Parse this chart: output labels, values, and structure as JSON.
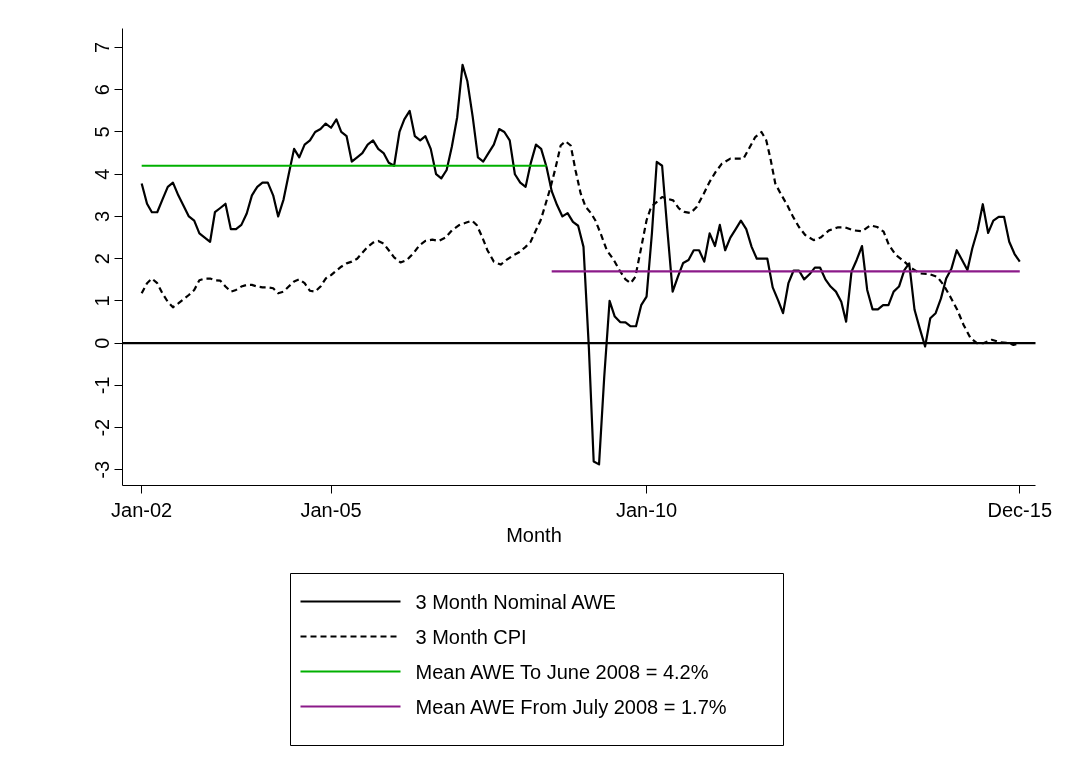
{
  "chart_data": {
    "type": "line",
    "xlabel": "Month",
    "x": [
      "2002-01",
      "2002-02",
      "2002-03",
      "2002-04",
      "2002-05",
      "2002-06",
      "2002-07",
      "2002-08",
      "2002-09",
      "2002-10",
      "2002-11",
      "2002-12",
      "2003-01",
      "2003-02",
      "2003-03",
      "2003-04",
      "2003-05",
      "2003-06",
      "2003-07",
      "2003-08",
      "2003-09",
      "2003-10",
      "2003-11",
      "2003-12",
      "2004-01",
      "2004-02",
      "2004-03",
      "2004-04",
      "2004-05",
      "2004-06",
      "2004-07",
      "2004-08",
      "2004-09",
      "2004-10",
      "2004-11",
      "2004-12",
      "2005-01",
      "2005-02",
      "2005-03",
      "2005-04",
      "2005-05",
      "2005-06",
      "2005-07",
      "2005-08",
      "2005-09",
      "2005-10",
      "2005-11",
      "2005-12",
      "2006-01",
      "2006-02",
      "2006-03",
      "2006-04",
      "2006-05",
      "2006-06",
      "2006-07",
      "2006-08",
      "2006-09",
      "2006-10",
      "2006-11",
      "2006-12",
      "2007-01",
      "2007-02",
      "2007-03",
      "2007-04",
      "2007-05",
      "2007-06",
      "2007-07",
      "2007-08",
      "2007-09",
      "2007-10",
      "2007-11",
      "2007-12",
      "2008-01",
      "2008-02",
      "2008-03",
      "2008-04",
      "2008-05",
      "2008-06",
      "2008-07",
      "2008-08",
      "2008-09",
      "2008-10",
      "2008-11",
      "2008-12",
      "2009-01",
      "2009-02",
      "2009-03",
      "2009-04",
      "2009-05",
      "2009-06",
      "2009-07",
      "2009-08",
      "2009-09",
      "2009-10",
      "2009-11",
      "2009-12",
      "2010-01",
      "2010-02",
      "2010-03",
      "2010-04",
      "2010-05",
      "2010-06",
      "2010-07",
      "2010-08",
      "2010-09",
      "2010-10",
      "2010-11",
      "2010-12",
      "2011-01",
      "2011-02",
      "2011-03",
      "2011-04",
      "2011-05",
      "2011-06",
      "2011-07",
      "2011-08",
      "2011-09",
      "2011-10",
      "2011-11",
      "2011-12",
      "2012-01",
      "2012-02",
      "2012-03",
      "2012-04",
      "2012-05",
      "2012-06",
      "2012-07",
      "2012-08",
      "2012-09",
      "2012-10",
      "2012-11",
      "2012-12",
      "2013-01",
      "2013-02",
      "2013-03",
      "2013-04",
      "2013-05",
      "2013-06",
      "2013-07",
      "2013-08",
      "2013-09",
      "2013-10",
      "2013-11",
      "2013-12",
      "2014-01",
      "2014-02",
      "2014-03",
      "2014-04",
      "2014-05",
      "2014-06",
      "2014-07",
      "2014-08",
      "2014-09",
      "2014-10",
      "2014-11",
      "2014-12",
      "2015-01",
      "2015-02",
      "2015-03",
      "2015-04",
      "2015-05",
      "2015-06",
      "2015-07",
      "2015-08",
      "2015-09",
      "2015-10",
      "2015-11",
      "2015-12"
    ],
    "series": [
      {
        "name": "3 Month Nominal AWE",
        "color": "#000000",
        "line_style": "solid",
        "values": [
          3.78,
          3.3,
          3.1,
          3.1,
          3.4,
          3.7,
          3.8,
          3.5,
          3.25,
          3.0,
          2.9,
          2.6,
          2.5,
          2.4,
          3.1,
          3.2,
          3.3,
          2.7,
          2.7,
          2.8,
          3.07,
          3.5,
          3.7,
          3.8,
          3.8,
          3.5,
          3.0,
          3.4,
          4.0,
          4.6,
          4.4,
          4.7,
          4.8,
          5.0,
          5.07,
          5.2,
          5.1,
          5.3,
          5.0,
          4.9,
          4.3,
          4.4,
          4.5,
          4.7,
          4.8,
          4.6,
          4.5,
          4.27,
          4.2,
          5.0,
          5.3,
          5.5,
          4.9,
          4.8,
          4.9,
          4.6,
          4.0,
          3.9,
          4.1,
          4.65,
          5.35,
          6.59,
          6.2,
          5.35,
          4.4,
          4.3,
          4.5,
          4.7,
          5.07,
          5.0,
          4.8,
          4.0,
          3.8,
          3.7,
          4.25,
          4.7,
          4.6,
          4.17,
          3.6,
          3.27,
          3.0,
          3.08,
          2.87,
          2.78,
          2.28,
          -0.1,
          -2.8,
          -2.87,
          -0.8,
          1.0,
          0.63,
          0.5,
          0.49,
          0.4,
          0.4,
          0.9,
          1.1,
          2.6,
          4.29,
          4.2,
          2.7,
          1.22,
          1.57,
          1.9,
          1.97,
          2.2,
          2.2,
          1.93,
          2.6,
          2.3,
          2.8,
          2.2,
          2.5,
          2.7,
          2.9,
          2.7,
          2.28,
          2.0,
          2.0,
          2.0,
          1.32,
          1.02,
          0.71,
          1.42,
          1.72,
          1.72,
          1.51,
          1.63,
          1.79,
          1.79,
          1.51,
          1.34,
          1.22,
          0.98,
          0.51,
          1.69,
          1.97,
          2.3,
          1.26,
          0.8,
          0.8,
          0.9,
          0.9,
          1.22,
          1.34,
          1.73,
          1.89,
          0.79,
          0.35,
          -0.08,
          0.59,
          0.71,
          1.06,
          1.53,
          1.77,
          2.2,
          1.97,
          1.73,
          2.24,
          2.68,
          3.29,
          2.61,
          2.9,
          2.99,
          2.99,
          2.4,
          2.11,
          1.93
        ]
      },
      {
        "name": "3 Month CPI",
        "color": "#000000",
        "line_style": "dashed",
        "x": [
          "2002-01-01",
          "2002-02-01",
          "2002-03-01",
          "2002-04-01",
          "2002-05-01",
          "2002-06-01",
          "2002-07-01",
          "2002-08-01",
          "2002-09-01",
          "2002-10-01",
          "2002-11-01",
          "2002-12-01",
          "2003-01-01",
          "2003-02-01",
          "2003-03-01",
          "2003-04-01",
          "2003-05-01",
          "2003-06-01",
          "2003-07-01",
          "2003-08-01",
          "2003-09-01",
          "2003-10-01",
          "2003-11-01",
          "2003-12-01",
          "2004-01-01",
          "2004-02-01",
          "2004-03-01",
          "2004-04-01",
          "2004-05-01",
          "2004-06-01",
          "2004-07-01",
          "2004-08-01",
          "2004-09-01",
          "2004-10-01",
          "2004-11-01",
          "2004-12-01",
          "2005-01-01",
          "2005-02-01",
          "2005-03-01",
          "2005-04-01",
          "2005-05-01",
          "2005-06-01",
          "2005-07-01",
          "2005-08-01",
          "2005-09-01",
          "2005-10-01",
          "2005-11-01",
          "2005-12-01",
          "2006-01-01",
          "2006-02-07",
          "2006-03-16",
          "2006-04-25",
          "2006-05-28",
          "2006-07-01",
          "2006-08-10",
          "2006-09-16",
          "2006-10-25",
          "2006-12-01",
          "2007-01-10",
          "2007-02-19",
          "2007-03-28",
          "2007-04-25",
          "2007-05-25",
          "2007-06-25",
          "2007-08-01",
          "2007-09-10",
          "2007-10-13",
          "2007-11-22",
          "2007-12-28",
          "2008-02-01",
          "2008-03-01",
          "2008-03-28",
          "2008-04-28",
          "2008-05-22",
          "2008-06-25",
          "2008-07-22",
          "2008-08-22",
          "2008-09-19",
          "2008-10-19",
          "2008-11-16",
          "2008-12-16",
          "2009-01-13",
          "2009-02-13",
          "2009-03-10",
          "2009-04-10",
          "2009-05-16",
          "2009-06-25",
          "2009-07-28",
          "2009-09-01",
          "2009-10-01",
          "2009-10-28",
          "2009-11-28",
          "2010-01-01",
          "2010-01-28",
          "2010-02-28",
          "2010-04-01",
          "2010-05-01",
          "2010-06-04",
          "2010-07-07",
          "2010-08-07",
          "2010-09-13",
          "2010-10-19",
          "2010-11-28",
          "2011-01-01",
          "2011-02-04",
          "2011-03-13",
          "2011-05-01",
          "2011-06-07",
          "2011-07-16",
          "2011-08-16",
          "2011-09-22",
          "2011-10-28",
          "2011-11-25",
          "2011-12-19",
          "2012-01-16",
          "2012-02-16",
          "2012-03-25",
          "2012-04-28",
          "2012-06-01",
          "2012-07-07",
          "2012-08-25",
          "2012-10-04",
          "2012-11-22",
          "2013-01-10",
          "2013-02-25",
          "2013-04-13",
          "2013-06-01",
          "2013-07-19",
          "2013-08-28",
          "2013-10-04",
          "2013-11-04",
          "2013-12-13",
          "2014-02-01",
          "2014-03-16",
          "2014-05-04",
          "2014-06-22",
          "2014-08-10",
          "2014-09-16",
          "2014-10-25",
          "2014-12-04",
          "2015-01-10",
          "2015-02-19",
          "2015-03-28",
          "2015-05-04",
          "2015-06-22",
          "2015-08-10",
          "2015-09-28",
          "2015-10-25",
          "2015-12-01"
        ],
        "values": [
          1.18,
          1.42,
          1.53,
          1.42,
          1.18,
          0.98,
          0.85,
          0.94,
          1.04,
          1.14,
          1.26,
          1.49,
          1.53,
          1.53,
          1.49,
          1.48,
          1.34,
          1.22,
          1.26,
          1.34,
          1.38,
          1.38,
          1.34,
          1.32,
          1.32,
          1.3,
          1.18,
          1.22,
          1.34,
          1.46,
          1.51,
          1.42,
          1.24,
          1.22,
          1.34,
          1.53,
          1.61,
          1.72,
          1.81,
          1.89,
          1.93,
          2.0,
          2.14,
          2.28,
          2.38,
          2.42,
          2.36,
          2.2,
          2.03,
          1.91,
          1.97,
          2.14,
          2.32,
          2.42,
          2.45,
          2.42,
          2.5,
          2.67,
          2.79,
          2.85,
          2.9,
          2.79,
          2.52,
          2.2,
          1.93,
          1.86,
          1.97,
          2.08,
          2.16,
          2.28,
          2.4,
          2.64,
          2.91,
          3.23,
          3.7,
          4.13,
          4.68,
          4.78,
          4.68,
          4.09,
          3.54,
          3.23,
          3.08,
          2.91,
          2.6,
          2.2,
          1.97,
          1.73,
          1.51,
          1.42,
          1.57,
          2.2,
          2.91,
          3.23,
          3.34,
          3.46,
          3.42,
          3.38,
          3.19,
          3.11,
          3.08,
          3.23,
          3.54,
          3.82,
          4.05,
          4.25,
          4.37,
          4.37,
          4.37,
          4.6,
          4.88,
          5.0,
          4.8,
          4.37,
          3.78,
          3.54,
          3.27,
          2.99,
          2.75,
          2.56,
          2.44,
          2.5,
          2.67,
          2.74,
          2.74,
          2.67,
          2.65,
          2.79,
          2.75,
          2.64,
          2.32,
          2.09,
          1.93,
          1.77,
          1.65,
          1.64,
          1.57,
          1.38,
          1.1,
          0.79,
          0.43,
          0.12,
          0.0,
          0.0,
          0.08,
          0.02,
          0.0,
          -0.04,
          0.0
        ]
      },
      {
        "name": "Mean AWE To June 2008 = 4.2%",
        "color": "#00b000",
        "line_style": "solid",
        "x": [
          "2002-01",
          "2008-06"
        ],
        "values": [
          4.2,
          4.2
        ]
      },
      {
        "name": "Mean AWE From July 2008 = 1.7%",
        "color": "#8b1a89",
        "line_style": "solid",
        "x": [
          "2008-07",
          "2015-12"
        ],
        "values": [
          1.7,
          1.7
        ]
      }
    ],
    "ref_lines": [
      {
        "axis": "y",
        "value": 0,
        "color": "#000000"
      }
    ],
    "xlim": [
      "2001-09-12",
      "2016-03-01"
    ],
    "ylim": [
      -3.37,
      7.45
    ],
    "xticks": [
      {
        "value": "2002-01",
        "label": "Jan-02"
      },
      {
        "value": "2005-01",
        "label": "Jan-05"
      },
      {
        "value": "2010-01",
        "label": "Jan-10"
      },
      {
        "value": "2015-12",
        "label": "Dec-15"
      }
    ],
    "yticks": [
      -3,
      -2,
      -1,
      0,
      1,
      2,
      3,
      4,
      5,
      6,
      7
    ],
    "grid": false,
    "legend": "bottom"
  }
}
